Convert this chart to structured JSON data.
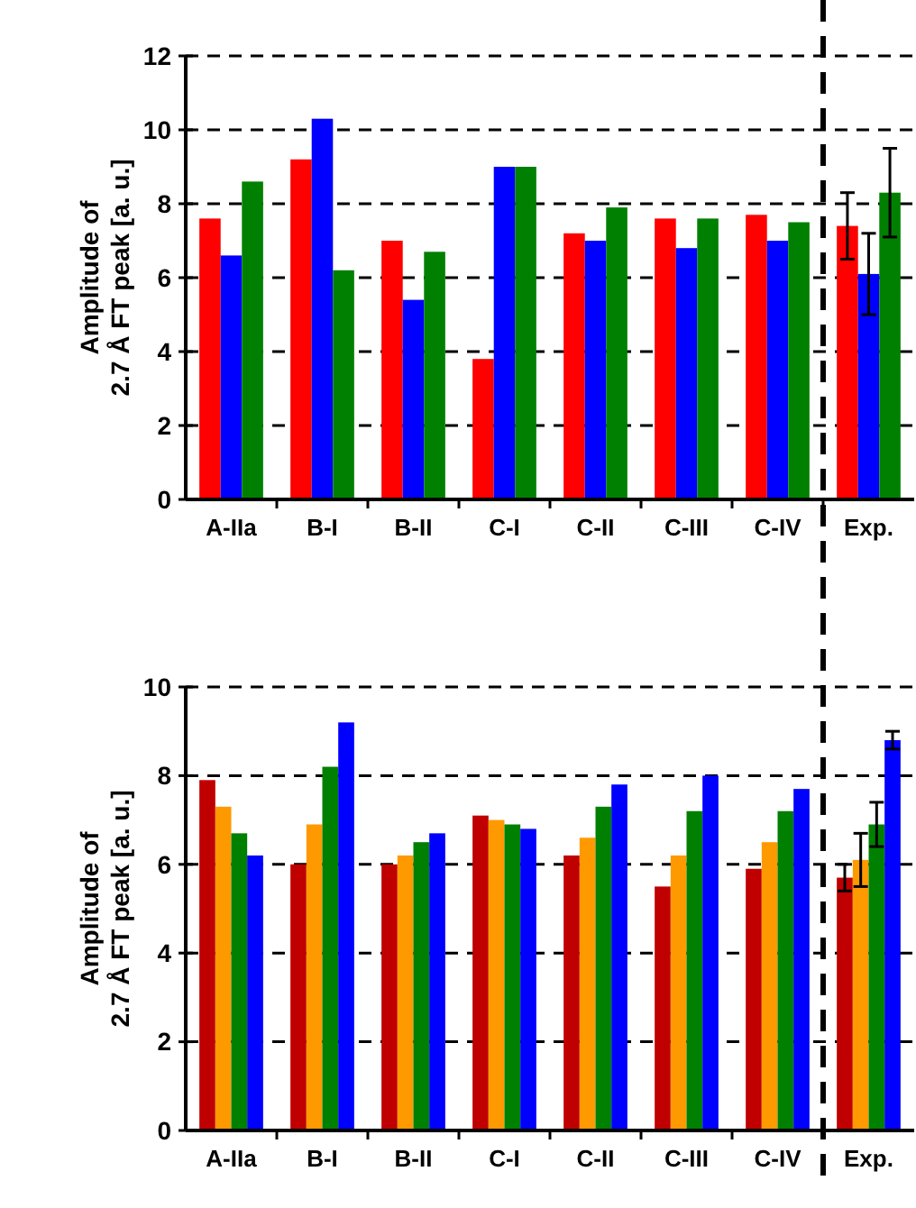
{
  "chart_data": [
    {
      "type": "bar",
      "ylabel": "Amplitude of\n2.7 Å FT peak [a. u.]",
      "categories": [
        "A-IIa",
        "B-I",
        "B-II",
        "C-I",
        "C-II",
        "C-III",
        "C-IV",
        "Exp."
      ],
      "ylim": [
        0,
        12
      ],
      "yticks": [
        0,
        2,
        4,
        6,
        8,
        10,
        12
      ],
      "grid": "y",
      "series": [
        {
          "color": "#ff0000",
          "values": [
            7.6,
            9.2,
            7.0,
            3.8,
            7.2,
            7.6,
            7.7,
            7.4
          ],
          "errors": [
            null,
            null,
            null,
            null,
            null,
            null,
            null,
            0.9
          ]
        },
        {
          "color": "#0000ff",
          "values": [
            6.6,
            10.3,
            5.4,
            9.0,
            7.0,
            6.8,
            7.0,
            6.1
          ],
          "errors": [
            null,
            null,
            null,
            null,
            null,
            null,
            null,
            1.1
          ]
        },
        {
          "color": "#008000",
          "values": [
            8.6,
            6.2,
            6.7,
            9.0,
            7.9,
            7.6,
            7.5,
            8.3
          ],
          "errors": [
            null,
            null,
            null,
            null,
            null,
            null,
            null,
            1.2
          ]
        }
      ]
    },
    {
      "type": "bar",
      "ylabel": "Amplitude of\n2.7 Å FT peak [a. u.]",
      "categories": [
        "A-IIa",
        "B-I",
        "B-II",
        "C-I",
        "C-II",
        "C-III",
        "C-IV",
        "Exp."
      ],
      "ylim": [
        0,
        10
      ],
      "yticks": [
        0,
        2,
        4,
        6,
        8,
        10
      ],
      "grid": "y",
      "series": [
        {
          "color": "#c00000",
          "values": [
            7.9,
            6.0,
            6.0,
            7.1,
            6.2,
            5.5,
            5.9,
            5.7
          ],
          "errors": [
            null,
            null,
            null,
            null,
            null,
            null,
            null,
            0.3
          ]
        },
        {
          "color": "#ff9900",
          "values": [
            7.3,
            6.9,
            6.2,
            7.0,
            6.6,
            6.2,
            6.5,
            6.1
          ],
          "errors": [
            null,
            null,
            null,
            null,
            null,
            null,
            null,
            0.6
          ]
        },
        {
          "color": "#008000",
          "values": [
            6.7,
            8.2,
            6.5,
            6.9,
            7.3,
            7.2,
            7.2,
            6.9
          ],
          "errors": [
            null,
            null,
            null,
            null,
            null,
            null,
            null,
            0.5
          ]
        },
        {
          "color": "#0000ff",
          "values": [
            6.2,
            9.2,
            6.7,
            6.8,
            7.8,
            8.0,
            7.7,
            8.8
          ],
          "errors": [
            null,
            null,
            null,
            null,
            null,
            null,
            null,
            0.2
          ]
        }
      ]
    }
  ]
}
